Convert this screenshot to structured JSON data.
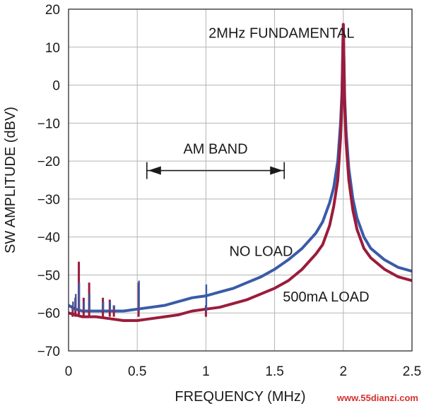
{
  "chart_data": {
    "type": "line",
    "xlabel": "FREQUENCY (MHz)",
    "ylabel": "SW AMPLITUDE (dBV)",
    "xlim": [
      0,
      2.5
    ],
    "ylim": [
      -70,
      20
    ],
    "x_ticks": [
      "0",
      "0.5",
      "1",
      "1.5",
      "2",
      "2.5"
    ],
    "y_ticks": [
      "20",
      "10",
      "0",
      "−10",
      "−20",
      "−30",
      "−40",
      "−50",
      "−60",
      "−70"
    ],
    "grid": true,
    "series": [
      {
        "name": "NO LOAD",
        "color": "#3a5ba8",
        "x": [
          0.0,
          0.05,
          0.1,
          0.2,
          0.3,
          0.4,
          0.5,
          0.6,
          0.7,
          0.8,
          0.9,
          1.0,
          1.1,
          1.2,
          1.3,
          1.4,
          1.5,
          1.6,
          1.7,
          1.8,
          1.85,
          1.9,
          1.93,
          1.96,
          1.98,
          1.99,
          2.0,
          2.01,
          2.02,
          2.04,
          2.07,
          2.1,
          2.15,
          2.2,
          2.3,
          2.4,
          2.5
        ],
        "y": [
          -58,
          -59,
          -59.5,
          -59.5,
          -59.5,
          -59.5,
          -59,
          -58.5,
          -58,
          -57,
          -56,
          -55.5,
          -54.5,
          -53.5,
          -52,
          -50.5,
          -48.5,
          -46,
          -43,
          -39,
          -36,
          -31,
          -27,
          -20,
          -10,
          -2,
          16,
          -3,
          -12,
          -22,
          -30,
          -35,
          -40,
          -43,
          -46,
          -48,
          -49
        ]
      },
      {
        "name": "500mA LOAD",
        "color": "#9b1c3c",
        "x": [
          0.0,
          0.05,
          0.1,
          0.2,
          0.3,
          0.4,
          0.5,
          0.6,
          0.7,
          0.8,
          0.9,
          1.0,
          1.1,
          1.2,
          1.3,
          1.4,
          1.5,
          1.6,
          1.7,
          1.8,
          1.85,
          1.9,
          1.93,
          1.96,
          1.98,
          1.99,
          2.0,
          2.01,
          2.02,
          2.04,
          2.07,
          2.1,
          2.15,
          2.2,
          2.3,
          2.4,
          2.5
        ],
        "y": [
          -60,
          -60.5,
          -61,
          -61,
          -61.5,
          -62,
          -62,
          -61.5,
          -61,
          -60.5,
          -59.5,
          -59,
          -58.5,
          -57.5,
          -56.5,
          -55,
          -53.5,
          -51.5,
          -48.5,
          -44.5,
          -42,
          -37,
          -32,
          -25,
          -14,
          -4,
          16,
          -5,
          -15,
          -25,
          -33,
          -38,
          -43,
          -45.5,
          -48.5,
          -50.5,
          -51.5
        ]
      }
    ],
    "spurs": [
      {
        "x": 0.03,
        "no_load": -57,
        "load": -58
      },
      {
        "x": 0.05,
        "no_load": -55,
        "load": -56
      },
      {
        "x": 0.075,
        "no_load": -52,
        "load": -46.5
      },
      {
        "x": 0.11,
        "no_load": -57,
        "load": -56
      },
      {
        "x": 0.15,
        "no_load": -55,
        "load": -52
      },
      {
        "x": 0.25,
        "no_load": -57,
        "load": -56
      },
      {
        "x": 0.3,
        "no_load": -57,
        "load": -56.5
      },
      {
        "x": 0.33,
        "no_load": -58,
        "load": -58
      },
      {
        "x": 0.51,
        "no_load": -51.5,
        "load": -52
      },
      {
        "x": 1.0,
        "no_load": -52.5,
        "load": -58
      }
    ],
    "annotations": {
      "fundamental": "2MHz FUNDAMENTAL",
      "am_band": "AM BAND",
      "no_load_label": "NO LOAD",
      "load_label": "500mA LOAD",
      "am_band_range": [
        0.57,
        1.57
      ],
      "am_band_level": -22.5
    }
  },
  "watermark": "www.55dianzi.com"
}
